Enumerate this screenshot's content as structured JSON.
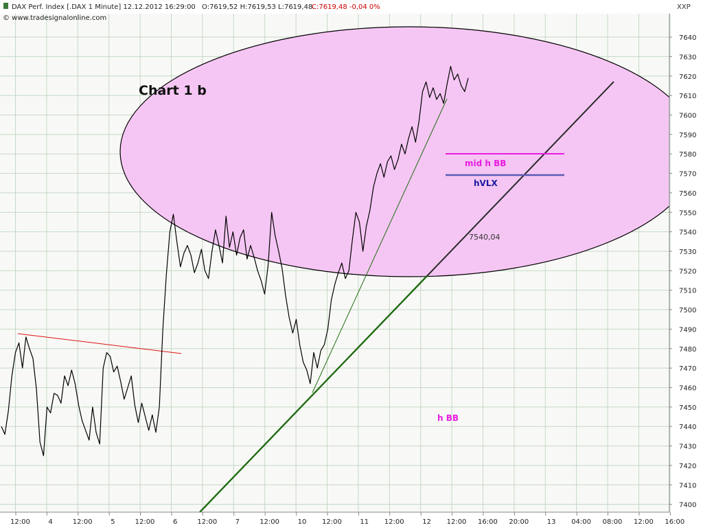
{
  "header": {
    "instrument": "DAX Perf. Index [.DAX  1 Minute] 12.12.2012 16:29:00",
    "ohl": "O:7619,52 H:7619,53 L:7619,48",
    "close": "C:7619,48 -0,04 0%",
    "source": "© www.tradesignalonline.com",
    "symbol": "XXP"
  },
  "colors": {
    "background": "#ffffff",
    "plot_background": "#f8f9f6",
    "grid": "#c5d7c5",
    "price": "#000000",
    "ellipse_fill": "#f5c6f3",
    "ellipse_stroke": "#000000",
    "red_line": "#dd1111",
    "green_trend": "#1e6b10",
    "thin_green": "#1e6b10",
    "mid_h_bb": "#e81ce0",
    "hvlx": "#5a5ab5",
    "close_red": "#cc0000"
  },
  "annotations": {
    "chart_label": "Chart 1 b",
    "mid_h_bb": "mid h BB",
    "hvlx": "hVLX",
    "h_bb": "h BB",
    "level": "7540,04"
  },
  "chart_data": {
    "type": "line",
    "title": "DAX Perf. Index [.DAX  1 Minute]",
    "xlabel": "",
    "ylabel": "",
    "ylim": [
      7396,
      7652
    ],
    "grid": true,
    "y_ticks": [
      7400,
      7410,
      7420,
      7430,
      7440,
      7450,
      7460,
      7470,
      7480,
      7490,
      7500,
      7510,
      7520,
      7530,
      7540,
      7550,
      7560,
      7570,
      7580,
      7590,
      7600,
      7610,
      7620,
      7630,
      7640
    ],
    "x_ticks": [
      "12:00",
      "4",
      "12:00",
      "5",
      "12:00",
      "6",
      "12:00",
      "7",
      "12:00",
      "10",
      "12:00",
      "11",
      "12:00",
      "12",
      "12:00",
      "16:00",
      "20:00",
      "13",
      "04:00",
      "08:00",
      "12:00",
      "16:00"
    ],
    "series": [
      {
        "values": [
          7440,
          7436,
          7448,
          7466,
          7478,
          7483,
          7470,
          7486,
          7480,
          7475,
          7459,
          7432,
          7425,
          7450,
          7447,
          7457,
          7456,
          7452,
          7466,
          7461,
          7469,
          7462,
          7451,
          7443,
          7438,
          7433,
          7450,
          7437,
          7431,
          7470,
          7478,
          7476,
          7468,
          7471,
          7463,
          7454,
          7460,
          7466,
          7451,
          7442,
          7452,
          7445,
          7438,
          7446,
          7437,
          7450,
          7490,
          7518,
          7540,
          7549,
          7535,
          7522,
          7529,
          7533,
          7528,
          7519,
          7524,
          7531,
          7520,
          7516,
          7530,
          7541,
          7533,
          7524,
          7548,
          7532,
          7540,
          7528,
          7537,
          7541,
          7526,
          7533,
          7527,
          7520,
          7515,
          7508,
          7523,
          7550,
          7538,
          7530,
          7521,
          7507,
          7496,
          7488,
          7495,
          7482,
          7473,
          7469,
          7462,
          7478,
          7470,
          7479,
          7482,
          7490,
          7505,
          7513,
          7519,
          7524,
          7516,
          7520,
          7536,
          7550,
          7545,
          7530,
          7543,
          7551,
          7563,
          7570,
          7575,
          7568,
          7576,
          7579,
          7572,
          7577,
          7585,
          7580,
          7588,
          7594,
          7586,
          7597,
          7612,
          7617,
          7609,
          7614,
          7608,
          7611,
          7606,
          7616,
          7625,
          7618,
          7621,
          7615,
          7612,
          7619
        ]
      }
    ]
  }
}
